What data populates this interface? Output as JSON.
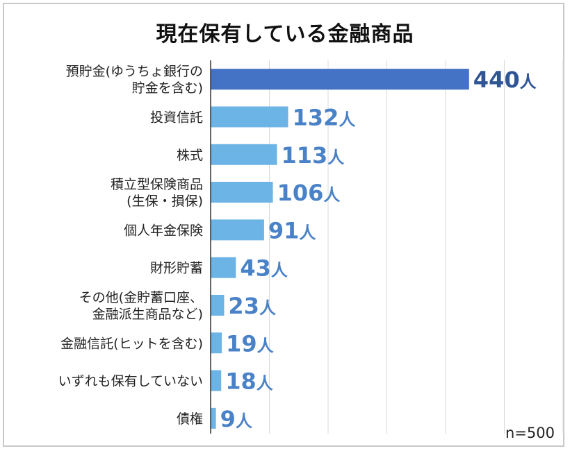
{
  "chart_data": {
    "type": "bar",
    "orientation": "horizontal",
    "title": "現在保有している金融商品",
    "unit": "人",
    "categories": [
      [
        "預貯金(ゆうちょ銀行の",
        "貯金を含む)"
      ],
      [
        "投資信託"
      ],
      [
        "株式"
      ],
      [
        "積立型保険商品",
        "(生保・損保)"
      ],
      [
        "個人年金保険"
      ],
      [
        "財形貯蓄"
      ],
      [
        "その他(金貯蓄口座、",
        "金融派生商品など)"
      ],
      [
        "金融信託(ヒットを含む)"
      ],
      [
        "いずれも保有していない"
      ],
      [
        "債権"
      ]
    ],
    "values": [
      440,
      132,
      113,
      106,
      91,
      43,
      23,
      19,
      18,
      9
    ],
    "value_labels": [
      "440人",
      "132人",
      "113人",
      "106人",
      "91人",
      "43人",
      "23人",
      "19人",
      "18人",
      "9人"
    ],
    "xlim": [
      0,
      600
    ],
    "grid": true,
    "note": "n=500",
    "colors": {
      "highlight": "#4472c4",
      "bar": "#6cb3e6",
      "highlight_label": "#2f5597",
      "label": "#4a82c8"
    }
  }
}
